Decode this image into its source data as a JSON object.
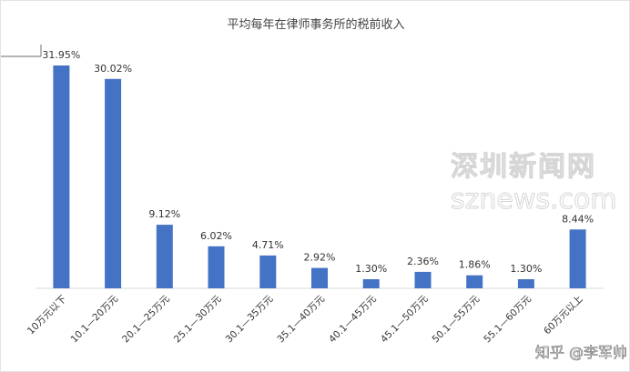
{
  "chart_data": {
    "type": "bar",
    "title": "平均每年在律师事务所的税前收入",
    "categories": [
      "10万元以下",
      "10.1—20万元",
      "20.1—25万元",
      "25.1—30万元",
      "30.1—35万元",
      "35.1—40万元",
      "40.1—45万元",
      "45.1—50万元",
      "50.1—55万元",
      "55.1—60万元",
      "60万元以上"
    ],
    "values": [
      31.95,
      30.02,
      9.12,
      6.02,
      4.71,
      2.92,
      1.3,
      2.36,
      1.86,
      1.3,
      8.44
    ],
    "value_labels": [
      "31.95%",
      "30.02%",
      "9.12%",
      "6.02%",
      "4.71%",
      "2.92%",
      "1.30%",
      "2.36%",
      "1.86%",
      "1.30%",
      "8.44%"
    ],
    "xlabel": "",
    "ylabel": "",
    "ylim": [
      0,
      35
    ],
    "grid": false,
    "colors": {
      "bar": "#4472C4",
      "axis": "#d9d9d9"
    }
  },
  "watermarks": {
    "source_cn": "深圳新闻网",
    "source_en": "sznews.com",
    "credit": "知乎 @李军帅"
  }
}
